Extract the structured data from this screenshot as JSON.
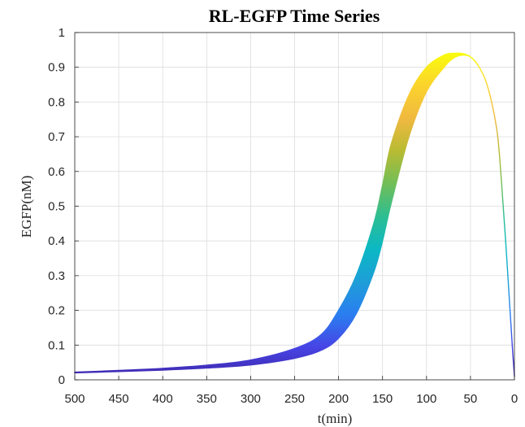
{
  "chart_data": {
    "type": "area",
    "title": "RL-EGFP Time Series",
    "xlabel": "t(min)",
    "ylabel": "EGFP(nM)",
    "xlim": [
      500,
      0
    ],
    "x_reversed": true,
    "ylim": [
      0,
      1
    ],
    "grid": true,
    "legend": "none",
    "x_ticks": [
      "500",
      "450",
      "400",
      "350",
      "300",
      "250",
      "200",
      "150",
      "100",
      "50",
      "0"
    ],
    "y_ticks": [
      "0",
      "0.1",
      "0.2",
      "0.3",
      "0.4",
      "0.5",
      "0.6",
      "0.7",
      "0.8",
      "0.9",
      "1"
    ],
    "colormap": "parula",
    "colormap_stops": [
      "#3e26a8",
      "#4744e5",
      "#2a7ef0",
      "#1e9ed8",
      "#0bb8c4",
      "#2cbe92",
      "#70be58",
      "#b8bb33",
      "#f0b940",
      "#fbd32c",
      "#f9fb0e"
    ],
    "series": [
      {
        "t": [
          500,
          450,
          400,
          350,
          300,
          250,
          220,
          200,
          180,
          160,
          150,
          140,
          120,
          100,
          80,
          70,
          60,
          50,
          40,
          30,
          20,
          15,
          10,
          5,
          2,
          0
        ],
        "upper": [
          0.022,
          0.027,
          0.033,
          0.042,
          0.057,
          0.09,
          0.13,
          0.2,
          0.3,
          0.45,
          0.56,
          0.68,
          0.82,
          0.9,
          0.935,
          0.94,
          0.94,
          0.93,
          0.9,
          0.84,
          0.72,
          0.58,
          0.4,
          0.2,
          0.08,
          0.01
        ],
        "lower": [
          0.02,
          0.024,
          0.028,
          0.034,
          0.043,
          0.062,
          0.085,
          0.12,
          0.19,
          0.31,
          0.4,
          0.51,
          0.7,
          0.83,
          0.9,
          0.925,
          0.935,
          0.93,
          0.9,
          0.84,
          0.72,
          0.58,
          0.4,
          0.2,
          0.08,
          0.01
        ]
      }
    ]
  }
}
